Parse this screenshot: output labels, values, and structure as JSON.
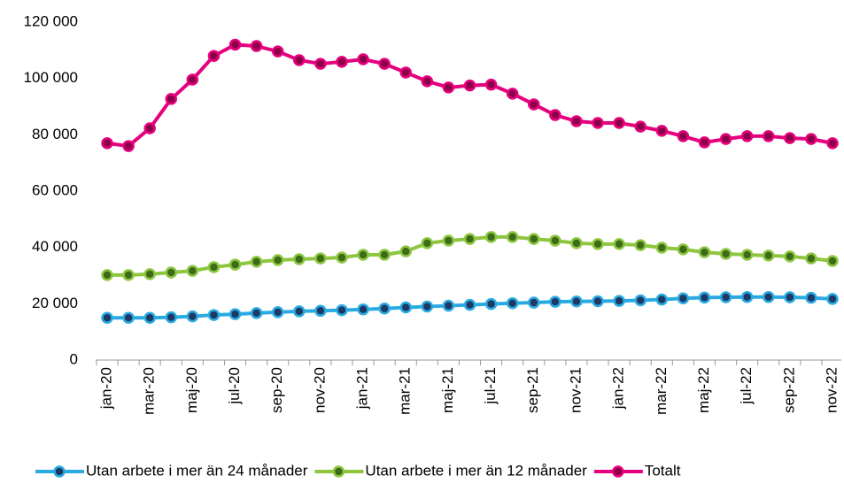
{
  "chart_data": {
    "type": "line",
    "categories": [
      "jan-20",
      null,
      "mar-20",
      null,
      "maj-20",
      null,
      "jul-20",
      null,
      "sep-20",
      null,
      "nov-20",
      null,
      "jan-21",
      null,
      "mar-21",
      null,
      "maj-21",
      null,
      "jul-21",
      null,
      "sep-21",
      null,
      "nov-21",
      null,
      "jan-22",
      null,
      "mar-22",
      null,
      "maj-22",
      null,
      "jul-22",
      null,
      "sep-22",
      null,
      "nov-22"
    ],
    "series": [
      {
        "name": "Utan arbete i mer än 24 månader",
        "color": "#29abe2",
        "marker_color": "#1f3864",
        "values": [
          15000,
          15000,
          15000,
          15200,
          15500,
          16000,
          16300,
          16700,
          17000,
          17300,
          17500,
          17700,
          18000,
          18300,
          18700,
          19000,
          19300,
          19600,
          19900,
          20200,
          20400,
          20700,
          20800,
          20900,
          21000,
          21200,
          21500,
          21900,
          22200,
          22300,
          22400,
          22400,
          22300,
          22100,
          21700
        ]
      },
      {
        "name": "Utan arbete i mer än 12 månader",
        "color": "#8dc63f",
        "marker_color": "#3d6b1a",
        "values": [
          30200,
          30200,
          30500,
          31100,
          31700,
          33000,
          33900,
          34900,
          35500,
          35800,
          36100,
          36400,
          37400,
          37400,
          38600,
          41500,
          42400,
          43000,
          43700,
          43700,
          43000,
          42400,
          41500,
          41200,
          41200,
          40800,
          39900,
          39300,
          38300,
          37700,
          37400,
          37100,
          36800,
          36100,
          35200
        ]
      },
      {
        "name": "Totalt",
        "color": "#e6007e",
        "marker_color": "#8c0048",
        "values": [
          77000,
          76000,
          82300,
          92700,
          99600,
          108000,
          112000,
          111500,
          109600,
          106500,
          105200,
          105900,
          106800,
          105200,
          102100,
          99000,
          96800,
          97500,
          97800,
          94600,
          90800,
          87000,
          84800,
          84200,
          84200,
          82900,
          81400,
          79500,
          77300,
          78500,
          79500,
          79500,
          78800,
          78500,
          77000
        ]
      }
    ],
    "ylim": [
      0,
      120000
    ],
    "yticks": [
      0,
      {
        "value": 20000,
        "label": "20 000"
      },
      {
        "value": 40000,
        "label": "40 000"
      },
      {
        "value": 60000,
        "label": "60 000"
      },
      {
        "value": 80000,
        "label": "80 000"
      },
      {
        "value": 100000,
        "label": "100 000"
      },
      {
        "value": 120000,
        "label": "120 000"
      }
    ],
    "grid": false,
    "legend": "bottom"
  }
}
